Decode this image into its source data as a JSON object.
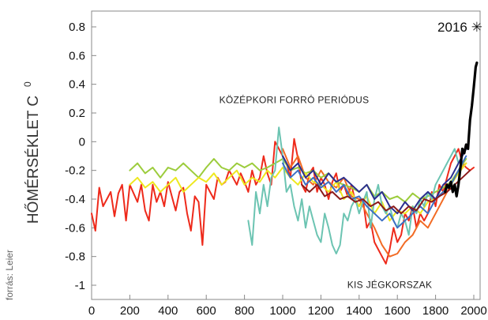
{
  "chart_data": {
    "type": "line",
    "ylabel": "HŐMÉRSÉKLET C",
    "ylabel_superscript": "0",
    "source": "forrás: Leier",
    "xlim": [
      0,
      2020
    ],
    "ylim": [
      -1.1,
      0.9
    ],
    "x_ticks": [
      0,
      200,
      400,
      600,
      800,
      1000,
      1200,
      1400,
      1600,
      1800,
      2000
    ],
    "y_ticks": [
      {
        "value": 0.8,
        "label": "0.8"
      },
      {
        "value": 0.6,
        "label": "0.6"
      },
      {
        "value": 0.4,
        "label": "0.4"
      },
      {
        "value": 0.2,
        "label": "0.2"
      },
      {
        "value": 0,
        "label": "0"
      },
      {
        "value": -0.2,
        "label": "-0.2"
      },
      {
        "value": -0.4,
        "label": "-0.4"
      },
      {
        "value": -0.6,
        "label": "-0.6"
      },
      {
        "value": -0.8,
        "label": "-0.8"
      },
      {
        "value": -1,
        "label": "-1"
      }
    ],
    "grid": false,
    "annotations": [
      {
        "text": "KÖZÉPKORI FORRÓ PERIÓDUS",
        "x": 1060,
        "y": 0.27
      },
      {
        "text": "KIS JÉGKORSZAK",
        "x": 1560,
        "y": -1.02
      }
    ],
    "marker": {
      "label": "2016",
      "symbol": "✳",
      "x": 2016,
      "y": 0.8
    },
    "series": [
      {
        "color": "#ee2a1b",
        "x": [
          0,
          20,
          40,
          60,
          80,
          100,
          120,
          140,
          160,
          180,
          200,
          220,
          240,
          260,
          280,
          300,
          320,
          340,
          360,
          380,
          400,
          420,
          440,
          460,
          480,
          500,
          520,
          540,
          560,
          580,
          600,
          620,
          640,
          660,
          680,
          700,
          720,
          740,
          760,
          780,
          800,
          820,
          840,
          860,
          880,
          900,
          920,
          940,
          960,
          980,
          1000,
          1020,
          1040,
          1060,
          1080,
          1100,
          1120,
          1140,
          1160,
          1180,
          1200,
          1220,
          1240,
          1260,
          1280,
          1300,
          1320,
          1340,
          1360,
          1380,
          1400,
          1420,
          1440,
          1460,
          1480,
          1500,
          1520,
          1540,
          1560,
          1580,
          1600,
          1620,
          1640,
          1660,
          1680,
          1700,
          1720,
          1740,
          1760,
          1780,
          1800,
          1820,
          1840,
          1860,
          1880,
          1900,
          1920,
          1940,
          1960,
          1980,
          2000
        ],
        "y": [
          -0.5,
          -0.62,
          -0.32,
          -0.45,
          -0.4,
          -0.35,
          -0.52,
          -0.36,
          -0.3,
          -0.55,
          -0.3,
          -0.36,
          -0.42,
          -0.3,
          -0.48,
          -0.55,
          -0.3,
          -0.42,
          -0.35,
          -0.45,
          -0.28,
          -0.38,
          -0.48,
          -0.35,
          -0.32,
          -0.5,
          -0.62,
          -0.38,
          -0.42,
          -0.72,
          -0.3,
          -0.35,
          -0.4,
          -0.25,
          -0.3,
          -0.28,
          -0.2,
          -0.25,
          -0.3,
          -0.22,
          -0.28,
          -0.35,
          -0.2,
          -0.3,
          -0.25,
          -0.1,
          -0.22,
          -0.3,
          0.0,
          -0.05,
          -0.1,
          -0.15,
          -0.25,
          0.02,
          -0.12,
          -0.3,
          -0.35,
          -0.22,
          -0.18,
          -0.35,
          -0.25,
          -0.3,
          -0.4,
          -0.28,
          -0.22,
          -0.35,
          -0.3,
          -0.38,
          -0.3,
          -0.42,
          -0.45,
          -0.4,
          -0.6,
          -0.55,
          -0.7,
          -0.75,
          -0.8,
          -0.85,
          -0.75,
          -0.6,
          -0.7,
          -0.65,
          -0.5,
          -0.55,
          -0.45,
          -0.6,
          -0.5,
          -0.55,
          -0.5,
          -0.35,
          -0.45,
          -0.3,
          -0.35,
          -0.25,
          -0.15,
          -0.1,
          -0.05,
          -0.15,
          -0.18,
          -0.2,
          -0.18
        ]
      },
      {
        "color": "#f26b24",
        "x": [
          1000,
          1040,
          1080,
          1120,
          1160,
          1200,
          1240,
          1280,
          1320,
          1360,
          1400,
          1440,
          1480,
          1520,
          1560,
          1600,
          1640,
          1680,
          1720,
          1760,
          1800,
          1840,
          1880,
          1920,
          1960
        ],
        "y": [
          -0.05,
          -0.18,
          -0.1,
          -0.25,
          -0.3,
          -0.2,
          -0.28,
          -0.32,
          -0.25,
          -0.38,
          -0.4,
          -0.5,
          -0.6,
          -0.72,
          -0.8,
          -0.78,
          -0.7,
          -0.65,
          -0.55,
          -0.6,
          -0.5,
          -0.4,
          -0.3,
          -0.2,
          -0.15
        ]
      },
      {
        "color": "#9ccc3c",
        "x": [
          200,
          240,
          280,
          320,
          360,
          400,
          440,
          480,
          520,
          560,
          600,
          640,
          680,
          720,
          760,
          800,
          840,
          880,
          920,
          960,
          1000,
          1040,
          1080,
          1120,
          1160,
          1200,
          1240,
          1280,
          1320,
          1360,
          1400,
          1440,
          1480,
          1520,
          1560,
          1600,
          1640,
          1680,
          1720,
          1760,
          1800,
          1840,
          1880,
          1920,
          1960
        ],
        "y": [
          -0.2,
          -0.15,
          -0.22,
          -0.18,
          -0.25,
          -0.18,
          -0.2,
          -0.15,
          -0.2,
          -0.25,
          -0.18,
          -0.12,
          -0.18,
          -0.2,
          -0.15,
          -0.18,
          -0.15,
          -0.2,
          -0.18,
          -0.15,
          -0.12,
          -0.2,
          -0.18,
          -0.22,
          -0.2,
          -0.25,
          -0.22,
          -0.28,
          -0.3,
          -0.32,
          -0.35,
          -0.3,
          -0.38,
          -0.35,
          -0.4,
          -0.38,
          -0.42,
          -0.36,
          -0.4,
          -0.38,
          -0.35,
          -0.32,
          -0.28,
          -0.2,
          -0.12
        ]
      },
      {
        "color": "#eee81f",
        "x": [
          200,
          240,
          280,
          320,
          360,
          400,
          440,
          480,
          520,
          560,
          600,
          640,
          680,
          720,
          760,
          800,
          840,
          880,
          920,
          960,
          1000,
          1040,
          1080,
          1120,
          1160,
          1200,
          1240,
          1280,
          1320,
          1360,
          1400,
          1440,
          1480,
          1520,
          1560,
          1600,
          1640,
          1680,
          1720,
          1760,
          1800,
          1840,
          1880,
          1920,
          1960
        ],
        "y": [
          -0.3,
          -0.25,
          -0.32,
          -0.28,
          -0.35,
          -0.3,
          -0.25,
          -0.35,
          -0.3,
          -0.25,
          -0.28,
          -0.22,
          -0.3,
          -0.25,
          -0.2,
          -0.3,
          -0.25,
          -0.28,
          -0.2,
          -0.25,
          -0.18,
          -0.25,
          -0.3,
          -0.22,
          -0.28,
          -0.3,
          -0.35,
          -0.28,
          -0.4,
          -0.35,
          -0.45,
          -0.38,
          -0.5,
          -0.42,
          -0.55,
          -0.48,
          -0.5,
          -0.45,
          -0.5,
          -0.42,
          -0.4,
          -0.35,
          -0.3,
          -0.22,
          -0.15
        ]
      },
      {
        "color": "#6cc4b2",
        "x": [
          820,
          840,
          860,
          880,
          900,
          920,
          940,
          960,
          980,
          1000,
          1020,
          1040,
          1060,
          1080,
          1100,
          1120,
          1140,
          1160,
          1180,
          1200,
          1220,
          1240,
          1260,
          1280,
          1300,
          1320,
          1340,
          1360,
          1380,
          1400,
          1420,
          1440,
          1460,
          1480,
          1500,
          1520,
          1540,
          1560,
          1580,
          1600,
          1620,
          1640,
          1660,
          1680,
          1700,
          1720,
          1740,
          1760,
          1780,
          1800,
          1820,
          1840,
          1860,
          1880,
          1900,
          1920,
          1940,
          1960
        ],
        "y": [
          -0.55,
          -0.72,
          -0.35,
          -0.5,
          -0.3,
          -0.45,
          -0.25,
          -0.2,
          0.1,
          -0.1,
          -0.35,
          -0.3,
          -0.45,
          -0.55,
          -0.4,
          -0.6,
          -0.45,
          -0.55,
          -0.65,
          -0.7,
          -0.5,
          -0.6,
          -0.72,
          -0.78,
          -0.72,
          -0.5,
          -0.55,
          -0.45,
          -0.4,
          -0.5,
          -0.42,
          -0.35,
          -0.6,
          -0.4,
          -0.3,
          -0.45,
          -0.5,
          -0.45,
          -0.55,
          -0.6,
          -0.5,
          -0.55,
          -0.65,
          -0.45,
          -0.5,
          -0.4,
          -0.45,
          -0.35,
          -0.4,
          -0.3,
          -0.25,
          -0.2,
          -0.15,
          -0.1,
          -0.05,
          -0.15,
          -0.1,
          -0.05
        ]
      },
      {
        "color": "#2b2f8f",
        "x": [
          1000,
          1040,
          1080,
          1120,
          1160,
          1200,
          1240,
          1280,
          1320,
          1360,
          1400,
          1440,
          1480,
          1520,
          1560,
          1600,
          1640,
          1680,
          1720,
          1760,
          1800,
          1840,
          1880,
          1920,
          1960
        ],
        "y": [
          -0.1,
          -0.2,
          -0.15,
          -0.25,
          -0.2,
          -0.3,
          -0.22,
          -0.28,
          -0.25,
          -0.3,
          -0.35,
          -0.3,
          -0.4,
          -0.35,
          -0.45,
          -0.5,
          -0.42,
          -0.48,
          -0.4,
          -0.35,
          -0.4,
          -0.3,
          -0.25,
          -0.15,
          -0.05
        ]
      },
      {
        "color": "#3c6fc4",
        "x": [
          1000,
          1040,
          1080,
          1120,
          1160,
          1200,
          1240,
          1280,
          1320,
          1360,
          1400,
          1440,
          1480,
          1520,
          1560,
          1600,
          1640,
          1680,
          1720,
          1760,
          1800,
          1840,
          1880,
          1920,
          1960
        ],
        "y": [
          -0.15,
          -0.25,
          -0.2,
          -0.3,
          -0.25,
          -0.32,
          -0.28,
          -0.35,
          -0.3,
          -0.4,
          -0.38,
          -0.45,
          -0.5,
          -0.55,
          -0.5,
          -0.6,
          -0.55,
          -0.5,
          -0.45,
          -0.5,
          -0.4,
          -0.35,
          -0.3,
          -0.2,
          -0.1
        ]
      },
      {
        "color": "#8b1a1a",
        "x": [
          1100,
          1140,
          1180,
          1220,
          1260,
          1300,
          1340,
          1380,
          1420,
          1460,
          1500,
          1540,
          1580,
          1620,
          1660,
          1700,
          1740,
          1780,
          1820,
          1860,
          1900,
          1940,
          1980
        ],
        "y": [
          -0.3,
          -0.35,
          -0.3,
          -0.38,
          -0.35,
          -0.4,
          -0.38,
          -0.42,
          -0.4,
          -0.45,
          -0.42,
          -0.48,
          -0.45,
          -0.5,
          -0.45,
          -0.48,
          -0.4,
          -0.42,
          -0.38,
          -0.35,
          -0.3,
          -0.25,
          -0.2
        ]
      },
      {
        "color": "#000000",
        "x": [
          1850,
          1860,
          1870,
          1880,
          1890,
          1900,
          1910,
          1920,
          1930,
          1940,
          1950,
          1960,
          1970,
          1980,
          1990,
          2000,
          2010,
          2016
        ],
        "y": [
          -0.35,
          -0.3,
          -0.32,
          -0.28,
          -0.35,
          -0.3,
          -0.38,
          -0.3,
          -0.18,
          -0.05,
          -0.08,
          -0.02,
          -0.05,
          0.15,
          0.25,
          0.38,
          0.52,
          0.55
        ]
      }
    ]
  }
}
